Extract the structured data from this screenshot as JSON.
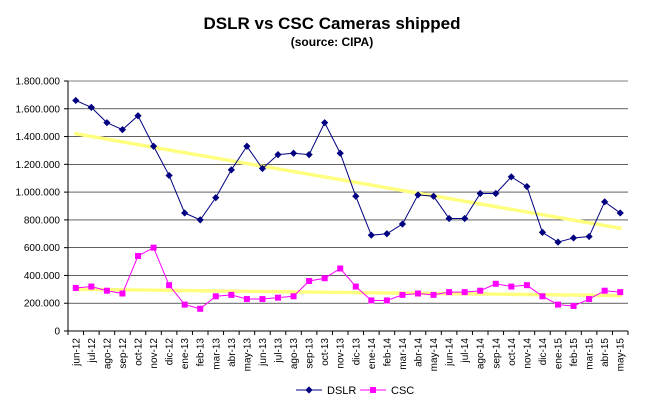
{
  "chart_data": {
    "type": "line",
    "title": "DSLR vs CSC Cameras shipped",
    "subtitle": "(source: CIPA)",
    "xlabel": "",
    "ylabel": "",
    "ylim": [
      0,
      1800000
    ],
    "y_ticks": [
      0,
      200000,
      400000,
      600000,
      800000,
      1000000,
      1200000,
      1400000,
      1600000,
      1800000
    ],
    "y_tick_labels": [
      "0",
      "200.000",
      "400.000",
      "600.000",
      "800.000",
      "1.000.000",
      "1.200.000",
      "1.400.000",
      "1.600.000",
      "1.800.000"
    ],
    "categories": [
      "jun-12",
      "jul-12",
      "ago-12",
      "sep-12",
      "oct-12",
      "nov-12",
      "dic-12",
      "ene-13",
      "feb-13",
      "mar-13",
      "abr-13",
      "may-13",
      "jun-13",
      "jul-13",
      "ago-13",
      "sep-13",
      "oct-13",
      "nov-13",
      "dic-13",
      "ene-14",
      "feb-14",
      "mar-14",
      "abr-14",
      "may-14",
      "jun-14",
      "jul-14",
      "ago-14",
      "sep-14",
      "oct-14",
      "nov-14",
      "dic-14",
      "ene-15",
      "feb-15",
      "mar-15",
      "abr-15",
      "may-15"
    ],
    "series": [
      {
        "name": "DSLR",
        "color": "#000080",
        "marker": "diamond",
        "values": [
          1660000,
          1610000,
          1500000,
          1450000,
          1550000,
          1330000,
          1120000,
          850000,
          800000,
          960000,
          1160000,
          1330000,
          1170000,
          1270000,
          1280000,
          1270000,
          1500000,
          1280000,
          970000,
          690000,
          700000,
          770000,
          980000,
          970000,
          810000,
          810000,
          990000,
          990000,
          1110000,
          1040000,
          710000,
          640000,
          670000,
          680000,
          930000,
          850000
        ]
      },
      {
        "name": "CSC",
        "color": "#ff00ff",
        "marker": "square",
        "values": [
          310000,
          320000,
          290000,
          270000,
          540000,
          600000,
          330000,
          190000,
          160000,
          250000,
          260000,
          230000,
          230000,
          240000,
          250000,
          360000,
          380000,
          450000,
          320000,
          220000,
          220000,
          260000,
          270000,
          260000,
          280000,
          280000,
          290000,
          340000,
          320000,
          330000,
          250000,
          190000,
          180000,
          230000,
          290000,
          280000
        ]
      }
    ],
    "trendlines": [
      {
        "series": "DSLR",
        "color": "#ffff80",
        "start": 1420000,
        "end": 740000
      },
      {
        "series": "CSC",
        "color": "#ffff80",
        "start": 300000,
        "end": 255000
      }
    ],
    "grid": true,
    "legend_position": "bottom"
  }
}
